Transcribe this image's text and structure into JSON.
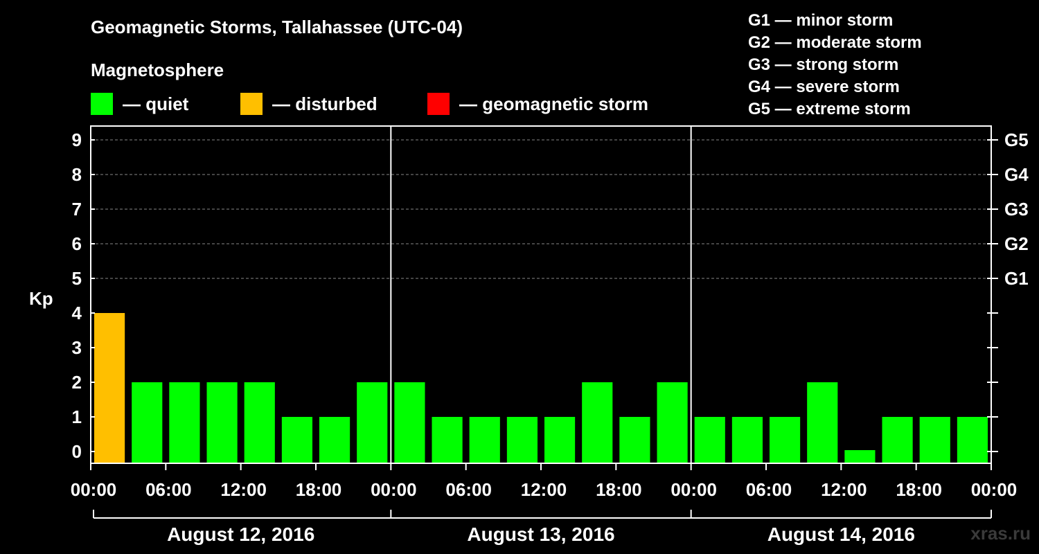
{
  "chart_data": {
    "type": "bar",
    "title": "Geomagnetic Storms, Tallahassee (UTC-04)",
    "subtitle": "Magnetosphere",
    "ylabel": "Kp",
    "ylim": [
      0,
      9
    ],
    "yticks": [
      "0",
      "1",
      "2",
      "3",
      "4",
      "5",
      "6",
      "7",
      "8",
      "9"
    ],
    "right_axis": [
      {
        "kp": 5,
        "label": "G1"
      },
      {
        "kp": 6,
        "label": "G2"
      },
      {
        "kp": 7,
        "label": "G3"
      },
      {
        "kp": 8,
        "label": "G4"
      },
      {
        "kp": 9,
        "label": "G5"
      }
    ],
    "x_tick_labels": [
      "00:00",
      "06:00",
      "12:00",
      "18:00",
      "00:00",
      "06:00",
      "12:00",
      "18:00",
      "00:00",
      "06:00",
      "12:00",
      "18:00",
      "00:00"
    ],
    "days": [
      "August 12, 2016",
      "August 13, 2016",
      "August 14, 2016"
    ],
    "interval_hours": 3,
    "values": [
      4,
      2,
      2,
      2,
      2,
      1,
      1,
      2,
      2,
      1,
      1,
      1,
      1,
      2,
      1,
      2,
      1,
      1,
      1,
      2,
      0,
      1,
      1,
      1
    ],
    "colors": {
      "quiet": "#00ff00",
      "disturbed": "#ffbf00",
      "storm": "#ff0000"
    },
    "legend": [
      {
        "key": "quiet",
        "label": "— quiet"
      },
      {
        "key": "disturbed",
        "label": "— disturbed"
      },
      {
        "key": "storm",
        "label": "— geomagnetic storm"
      }
    ],
    "storm_scale": [
      "G1 — minor storm",
      "G2 — moderate storm",
      "G3 — strong storm",
      "G4 — severe storm",
      "G5 — extreme storm"
    ],
    "grid": true
  },
  "watermark": "xras.ru"
}
